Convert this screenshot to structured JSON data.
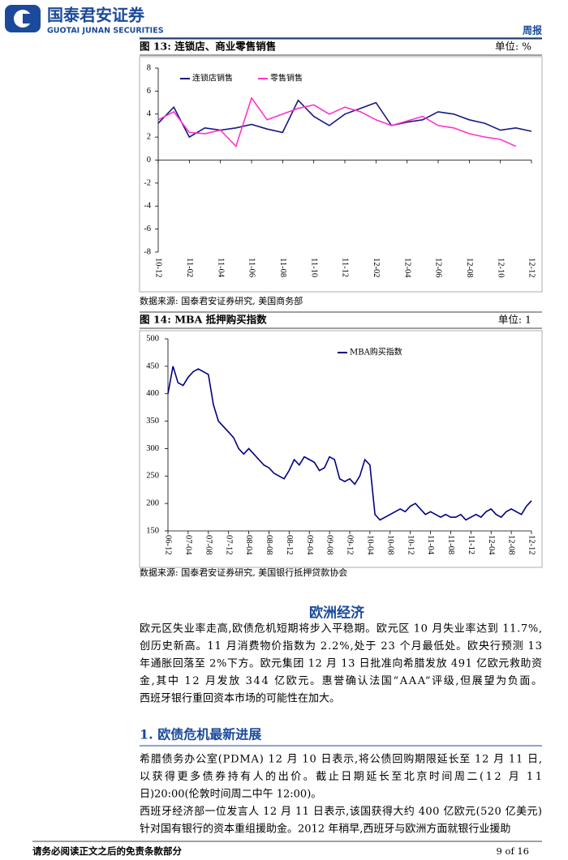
{
  "header": {
    "company_cn": "国泰君安证券",
    "company_en": "GUOTAI JUNAN SECURITIES",
    "report_type": "周报"
  },
  "chart_data": [
    {
      "type": "line",
      "title": "图 13: 连锁店、商业零售销售",
      "unit": "单位: %",
      "source": "数据来源: 国泰君安证券研究, 美国商务部",
      "categories": [
        "10-12",
        null,
        "11-02",
        null,
        "11-04",
        null,
        "11-06",
        null,
        "11-08",
        null,
        "11-10",
        null,
        "11-12",
        null,
        "12-02",
        null,
        "12-04",
        null,
        "12-06",
        null,
        "12-08",
        null,
        "12-10",
        null,
        "12-12"
      ],
      "series": [
        {
          "name": "连锁店销售",
          "color": "#1a1a80",
          "values": [
            3.2,
            4.6,
            2.0,
            2.8,
            2.6,
            2.8,
            3.1,
            2.7,
            2.4,
            5.2,
            3.8,
            3.0,
            4.0,
            4.5,
            5.0,
            3.0,
            3.3,
            3.5,
            4.2,
            4.0,
            3.5,
            3.2,
            2.6,
            2.8,
            2.5
          ]
        },
        {
          "name": "零售销售",
          "color": "#ff33cc",
          "values": [
            3.5,
            4.2,
            2.4,
            2.3,
            2.6,
            1.2,
            5.4,
            3.5,
            4.0,
            4.5,
            4.8,
            4.0,
            4.6,
            4.2,
            3.5,
            3.0,
            3.4,
            3.8,
            3.0,
            2.8,
            2.3,
            2.0,
            1.8,
            1.2,
            null
          ]
        }
      ],
      "ylim": [
        -8,
        8
      ],
      "yticks": [
        -8,
        -6,
        -4,
        -2,
        0,
        2,
        4,
        6,
        8
      ],
      "grid": false,
      "legend": "upper-left"
    },
    {
      "type": "line",
      "title": "图 14: MBA 抵押购买指数",
      "unit": "单位: 1",
      "source": "数据来源: 国泰君安证券研究, 美国银行抵押贷款协会",
      "categories": [
        "06-12",
        null,
        null,
        null,
        "07-04",
        null,
        null,
        null,
        "07-08",
        null,
        null,
        null,
        "07-12",
        null,
        null,
        null,
        "08-04",
        null,
        null,
        null,
        "08-08",
        null,
        null,
        null,
        "08-12",
        null,
        null,
        null,
        "09-04",
        null,
        null,
        null,
        "09-08",
        null,
        null,
        null,
        "09-12",
        null,
        null,
        null,
        "10-04",
        null,
        null,
        null,
        "10-08",
        null,
        null,
        null,
        "10-12",
        null,
        null,
        null,
        "11-04",
        null,
        null,
        null,
        "11-08",
        null,
        null,
        null,
        "11-12",
        null,
        null,
        null,
        "12-04",
        null,
        null,
        null,
        "12-08",
        null,
        null,
        null,
        "12-12"
      ],
      "series": [
        {
          "name": "MBA购买指数",
          "color": "#000080",
          "values": [
            400,
            450,
            420,
            415,
            430,
            440,
            445,
            440,
            435,
            380,
            350,
            340,
            330,
            320,
            300,
            290,
            300,
            290,
            280,
            270,
            265,
            255,
            250,
            245,
            260,
            280,
            270,
            285,
            280,
            275,
            260,
            265,
            285,
            280,
            245,
            240,
            245,
            235,
            250,
            280,
            270,
            180,
            170,
            175,
            180,
            185,
            190,
            185,
            195,
            200,
            190,
            180,
            185,
            180,
            175,
            180,
            175,
            175,
            180,
            170,
            175,
            180,
            175,
            185,
            190,
            180,
            175,
            185,
            190,
            185,
            180,
            195,
            205
          ]
        }
      ],
      "ylim": [
        150,
        500
      ],
      "yticks": [
        150,
        200,
        250,
        300,
        350,
        400,
        450,
        500
      ],
      "grid": false,
      "legend": "upper-center"
    }
  ],
  "body": {
    "section_title": "欧洲经济",
    "intro": [
      "欧元区失业率走高,欧债危机短期将步入平稳期。欧元区 10 月失业率达到 11.7%,",
      "创历史新高。11 月消费物价指数为 2.2%,处于 23 个月最低处。欧央行预测 13",
      "年通胀回落至 2%下方。欧元集团 12 月 13 日批准向希腊发放 491 亿欧元救助资",
      "金,其中 12 月发放 344 亿欧元。惠誉确认法国“AAA”评级,但展望为负面。",
      "西班牙银行重回资本市场的可能性在加大。"
    ],
    "subsection_title": "1. 欧债危机最新进展",
    "paragraphs": [
      [
        "希腊债务办公室(PDMA) 12 月 10 日表示,将公债回购期限延长至 12 月 11 日,",
        "以获得更多债券持有人的出价。截止日期延长至北京时间周二(12 月 11",
        "日)20:00(伦敦时间周二中午 12:00)。"
      ],
      [
        "西班牙经济部一位发言人 12 月 11 日表示,该国获得大约 400 亿欧元(520 亿美元)",
        "针对国有银行的资本重组援助金。2012 年稍早,西班牙与欧洲方面就银行业援助"
      ]
    ]
  },
  "footer": {
    "disclaimer": "请务必阅读正文之后的免责条款部分",
    "page": "9 of 16"
  }
}
